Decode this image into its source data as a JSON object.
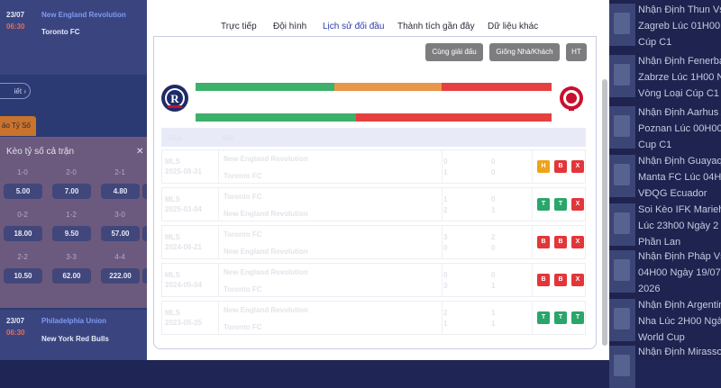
{
  "left": {
    "matches": [
      {
        "date": "23/07",
        "time": "06:30",
        "home": "New England Revolution",
        "away": "Toronto FC"
      },
      {
        "date": "23/07",
        "time": "06:30",
        "home": "Philadelphia Union",
        "away": "New York Red Bulls"
      }
    ],
    "detail_label": "iết ",
    "detail_arrow": "›",
    "odds_tab_label": "ảo Tỷ Số",
    "odds_panel_title": "Kèo tỷ số cả trận",
    "odds_panel_close": "✕",
    "odds": [
      {
        "score": "1-0",
        "value": "5.00"
      },
      {
        "score": "2-0",
        "value": "7.00"
      },
      {
        "score": "2-1",
        "value": "4.80"
      },
      {
        "score": "0-2",
        "value": "18.00"
      },
      {
        "score": "1-2",
        "value": "9.50"
      },
      {
        "score": "3-0",
        "value": "57.00"
      },
      {
        "score": "2-2",
        "value": "10.50"
      },
      {
        "score": "3-3",
        "value": "62.00"
      },
      {
        "score": "4-4",
        "value": "222.00"
      }
    ]
  },
  "news": [
    {
      "text": "Nhận Định Thun Vs\nZagreb Lúc 01H00\nCúp C1"
    },
    {
      "text": "Nhận Định Fenerba\nZabrze Lúc 1H00 N\nVòng Loại Cúp C1"
    },
    {
      "text": "Nhận Định Aarhus A\nPoznan Lúc 00H00\nCup C1"
    },
    {
      "text": "Nhận Định Guayaqu\nManta FC Lúc 04H\nVĐQG Ecuador"
    },
    {
      "text": "Soi Kèo IFK Marieha\nLúc 23h00 Ngày 2\nPhần Lan"
    },
    {
      "text": "Nhận Định Pháp Vs\n04H00 Ngày 19/07\n2026"
    },
    {
      "text": "Nhận Định Argentin\nNha Lúc 2H00 Ngày\nWorld Cup"
    },
    {
      "text": "Nhận Định Mirasso"
    }
  ],
  "modal": {
    "tabs": [
      {
        "label": "Trực tiếp",
        "active": false
      },
      {
        "label": "Đội hình",
        "active": false
      },
      {
        "label": "Lịch sử đối đầu",
        "active": true
      },
      {
        "label": "Thành tích gần đây",
        "active": false
      },
      {
        "label": "Dữ liệu khác",
        "active": false
      }
    ],
    "filters": [
      {
        "label": "Cùng giải đấu"
      },
      {
        "label": "Giống Nhà/Khách"
      },
      {
        "label": "HT"
      }
    ],
    "home_team": "New England Revolution",
    "away_team": "Toronto FC",
    "h2h_bar_1": {
      "home_win": 0.39,
      "draw": 0.3,
      "away_win": 0.31,
      "colors": {
        "win": "#3db06b",
        "draw": "#e8964a",
        "loss": "#e4403f"
      }
    },
    "h2h_bar_2": {
      "home_win": 0.45,
      "away_win": 0.55
    },
    "header_faded": {
      "col1": "Giải",
      "col2": "Đội"
    },
    "rows": [
      {
        "league": "MLS",
        "date": "2025-08-31",
        "team1": "New England Revolution",
        "team2": "Toronto FC",
        "s1": "0",
        "s2": "1",
        "h1": "0",
        "h2": "0",
        "results": [
          "H",
          "B",
          "X"
        ]
      },
      {
        "league": "MLS",
        "date": "2025-03-04",
        "team1": "Toronto FC",
        "team2": "New England Revolution",
        "s1": "1",
        "s2": "2",
        "h1": "0",
        "h2": "1",
        "results": [
          "T",
          "T",
          "X"
        ]
      },
      {
        "league": "MLS",
        "date": "2024-06-21",
        "team1": "Toronto FC",
        "team2": "New England Revolution",
        "s1": "3",
        "s2": "0",
        "h1": "2",
        "h2": "0",
        "results": [
          "B",
          "B",
          "X"
        ]
      },
      {
        "league": "MLS",
        "date": "2024-05-04",
        "team1": "New England Revolution",
        "team2": "Toronto FC",
        "s1": "0",
        "s2": "3",
        "h1": "0",
        "h2": "1",
        "results": [
          "B",
          "B",
          "X"
        ]
      },
      {
        "league": "MLS",
        "date": "2023-05-25",
        "team1": "New England Revolution",
        "team2": "Toronto FC",
        "s1": "2",
        "s2": "1",
        "h1": "1",
        "h2": "1",
        "results": [
          "T",
          "T",
          "T"
        ]
      }
    ]
  }
}
